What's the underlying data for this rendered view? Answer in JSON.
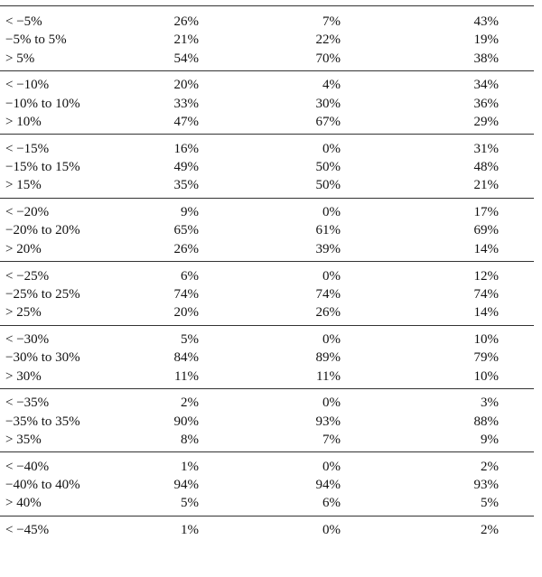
{
  "table": {
    "groups": [
      {
        "rows": [
          [
            "< −5%",
            "26%",
            "7%",
            "43%"
          ],
          [
            "−5% to 5%",
            "21%",
            "22%",
            "19%"
          ],
          [
            "> 5%",
            "54%",
            "70%",
            "38%"
          ]
        ]
      },
      {
        "rows": [
          [
            "< −10%",
            "20%",
            "4%",
            "34%"
          ],
          [
            "−10% to 10%",
            "33%",
            "30%",
            "36%"
          ],
          [
            "> 10%",
            "47%",
            "67%",
            "29%"
          ]
        ]
      },
      {
        "rows": [
          [
            "< −15%",
            "16%",
            "0%",
            "31%"
          ],
          [
            "−15% to 15%",
            "49%",
            "50%",
            "48%"
          ],
          [
            "> 15%",
            "35%",
            "50%",
            "21%"
          ]
        ]
      },
      {
        "rows": [
          [
            "< −20%",
            "9%",
            "0%",
            "17%"
          ],
          [
            "−20% to 20%",
            "65%",
            "61%",
            "69%"
          ],
          [
            "> 20%",
            "26%",
            "39%",
            "14%"
          ]
        ]
      },
      {
        "rows": [
          [
            "< −25%",
            "6%",
            "0%",
            "12%"
          ],
          [
            "−25% to 25%",
            "74%",
            "74%",
            "74%"
          ],
          [
            "> 25%",
            "20%",
            "26%",
            "14%"
          ]
        ]
      },
      {
        "rows": [
          [
            "< −30%",
            "5%",
            "0%",
            "10%"
          ],
          [
            "−30% to 30%",
            "84%",
            "89%",
            "79%"
          ],
          [
            "> 30%",
            "11%",
            "11%",
            "10%"
          ]
        ]
      },
      {
        "rows": [
          [
            "< −35%",
            "2%",
            "0%",
            "3%"
          ],
          [
            "−35% to 35%",
            "90%",
            "93%",
            "88%"
          ],
          [
            "> 35%",
            "8%",
            "7%",
            "9%"
          ]
        ]
      },
      {
        "rows": [
          [
            "< −40%",
            "1%",
            "0%",
            "2%"
          ],
          [
            "−40% to 40%",
            "94%",
            "94%",
            "93%"
          ],
          [
            "> 40%",
            "5%",
            "6%",
            "5%"
          ]
        ]
      },
      {
        "rows": [
          [
            "< −45%",
            "1%",
            "0%",
            "2%"
          ]
        ]
      }
    ]
  }
}
